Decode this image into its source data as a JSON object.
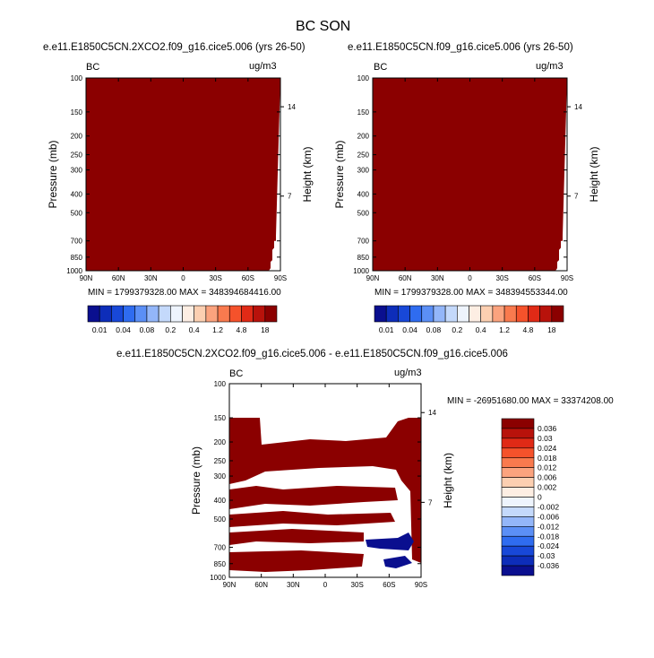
{
  "page_title": "BC SON",
  "colors": {
    "fill": "#8b0000",
    "neg": "#0a0f8f",
    "frame": "#000000"
  },
  "panels": {
    "left": {
      "title": "e.e11.E1850C5CN.2XCO2.f09_g16.cice5.006 (yrs 26-50)",
      "var": "BC",
      "units": "ug/m3",
      "min_max": "MIN = 1799379328.00  MAX = 348394684416.00"
    },
    "right": {
      "title": "e.e11.E1850C5CN.f09_g16.cice5.006 (yrs 26-50)",
      "var": "BC",
      "units": "ug/m3",
      "min_max": "MIN = 1799379328.00  MAX = 348394553344.00"
    },
    "diff": {
      "title": "e.e11.E1850C5CN.2XCO2.f09_g16.cice5.006 - e.e11.E1850C5CN.f09_g16.cice5.006",
      "var": "BC",
      "units": "ug/m3",
      "min_max": "MIN = -26951680.00  MAX = 33374208.00"
    }
  },
  "chart_data": [
    {
      "type": "heatmap",
      "title": "e.e11.E1850C5CN.2XCO2.f09_g16.cice5.006 (yrs 26-50)",
      "xlabel": "",
      "ylabel": "Pressure (mb)",
      "y2label": "Height (km)",
      "x_ticks": [
        "90N",
        "60N",
        "30N",
        "0",
        "30S",
        "60S",
        "90S"
      ],
      "y_ticks": [
        "100",
        "150",
        "200",
        "250",
        "300",
        "400",
        "500",
        "700",
        "850",
        "1000"
      ],
      "y2_ticks": [
        "14",
        "7"
      ],
      "colorbar_labels": [
        "0.01",
        "0.04",
        "0.08",
        "0.2",
        "0.4",
        "1.2",
        "4.8",
        "18"
      ],
      "colorbar_colors": [
        "#0a0f8f",
        "#0d2db9",
        "#1848d8",
        "#2f6cf0",
        "#5b8ff6",
        "#93b6f9",
        "#c4d9fb",
        "#eef4fd",
        "#fdeee3",
        "#fccfb1",
        "#fba37e",
        "#f97a4e",
        "#f5522b",
        "#e02a16",
        "#b8120b",
        "#8b0000"
      ]
    },
    {
      "type": "heatmap",
      "title": "e.e11.E1850C5CN.f09_g16.cice5.006 (yrs 26-50)",
      "xlabel": "",
      "ylabel": "Pressure (mb)",
      "y2label": "Height (km)",
      "x_ticks": [
        "90N",
        "60N",
        "30N",
        "0",
        "30S",
        "60S",
        "90S"
      ],
      "y_ticks": [
        "100",
        "150",
        "200",
        "250",
        "300",
        "400",
        "500",
        "700",
        "850",
        "1000"
      ],
      "y2_ticks": [
        "14",
        "7"
      ],
      "colorbar_labels": [
        "0.01",
        "0.04",
        "0.08",
        "0.2",
        "0.4",
        "1.2",
        "4.8",
        "18"
      ],
      "colorbar_colors": [
        "#0a0f8f",
        "#0d2db9",
        "#1848d8",
        "#2f6cf0",
        "#5b8ff6",
        "#93b6f9",
        "#c4d9fb",
        "#eef4fd",
        "#fdeee3",
        "#fccfb1",
        "#fba37e",
        "#f97a4e",
        "#f5522b",
        "#e02a16",
        "#b8120b",
        "#8b0000"
      ]
    },
    {
      "type": "heatmap",
      "title": "e.e11.E1850C5CN.2XCO2.f09_g16.cice5.006 - e.e11.E1850C5CN.f09_g16.cice5.006",
      "xlabel": "",
      "ylabel": "Pressure (mb)",
      "y2label": "Height (km)",
      "x_ticks": [
        "90N",
        "60N",
        "30N",
        "0",
        "30S",
        "60S",
        "90S"
      ],
      "y_ticks": [
        "100",
        "150",
        "200",
        "250",
        "300",
        "400",
        "500",
        "700",
        "850",
        "1000"
      ],
      "y2_ticks": [
        "14",
        "7"
      ],
      "colorbar_labels": [
        "0.036",
        "0.03",
        "0.024",
        "0.018",
        "0.012",
        "0.006",
        "0.002",
        "0",
        "-0.002",
        "-0.006",
        "-0.012",
        "-0.018",
        "-0.024",
        "-0.03",
        "-0.036"
      ],
      "colorbar_colors": [
        "#8b0000",
        "#b8120b",
        "#e02a16",
        "#f5522b",
        "#f97a4e",
        "#fba37e",
        "#fccfb1",
        "#fdeee3",
        "#eef4fd",
        "#c4d9fb",
        "#93b6f9",
        "#5b8ff6",
        "#2f6cf0",
        "#1848d8",
        "#0d2db9",
        "#0a0f8f"
      ]
    }
  ]
}
